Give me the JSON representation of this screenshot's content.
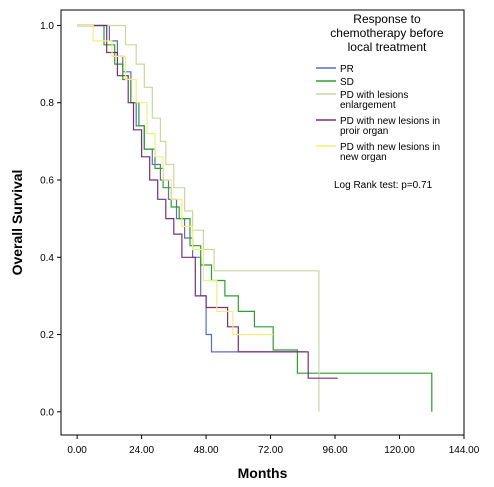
{
  "chart_data": {
    "type": "line",
    "subtype": "kaplan-meier step",
    "xlabel": "Months",
    "ylabel": "Overall Survival",
    "xlim": [
      -6,
      144
    ],
    "ylim": [
      -0.06,
      1.04
    ],
    "x_ticks": [
      0,
      24,
      48,
      72,
      96,
      120,
      144
    ],
    "x_tick_labels": [
      "0.00",
      "24.00",
      "48.00",
      "72.00",
      "96.00",
      "120.00",
      "144.00"
    ],
    "y_ticks": [
      0,
      0.2,
      0.4,
      0.6,
      0.8,
      1.0
    ],
    "y_tick_labels": [
      "0.0",
      "0.2",
      "0.4",
      "0.6",
      "0.8",
      "1.0"
    ],
    "grid": false,
    "legend_title": "Response to chemotherapy before local treatment",
    "legend_title_lines": [
      "Response to",
      "chemotherapy before",
      "local treatment"
    ],
    "legend_position": "top-right",
    "annotation": "Log Rank test: p=0.71",
    "series": [
      {
        "name": "PR",
        "label_lines": [
          "PR"
        ],
        "color": "#5a6ec8",
        "points": [
          [
            0,
            1.0
          ],
          [
            12,
            1.0
          ],
          [
            12,
            0.96
          ],
          [
            15,
            0.96
          ],
          [
            15,
            0.92
          ],
          [
            17,
            0.92
          ],
          [
            17,
            0.88
          ],
          [
            20,
            0.88
          ],
          [
            20,
            0.8
          ],
          [
            22,
            0.8
          ],
          [
            22,
            0.74
          ],
          [
            25,
            0.74
          ],
          [
            25,
            0.68
          ],
          [
            28,
            0.68
          ],
          [
            28,
            0.64
          ],
          [
            31,
            0.64
          ],
          [
            31,
            0.6
          ],
          [
            34,
            0.6
          ],
          [
            34,
            0.55
          ],
          [
            37,
            0.55
          ],
          [
            37,
            0.5
          ],
          [
            40,
            0.5
          ],
          [
            40,
            0.45
          ],
          [
            43,
            0.45
          ],
          [
            43,
            0.4
          ],
          [
            46,
            0.4
          ],
          [
            46,
            0.3
          ],
          [
            48,
            0.3
          ],
          [
            48,
            0.2
          ],
          [
            50,
            0.2
          ],
          [
            50,
            0.155
          ],
          [
            85,
            0.155
          ]
        ]
      },
      {
        "name": "SD",
        "label_lines": [
          "SD"
        ],
        "color": "#2ca02c",
        "points": [
          [
            0,
            1.0
          ],
          [
            10,
            1.0
          ],
          [
            10,
            0.95
          ],
          [
            14,
            0.95
          ],
          [
            14,
            0.9
          ],
          [
            17,
            0.9
          ],
          [
            17,
            0.86
          ],
          [
            20,
            0.86
          ],
          [
            20,
            0.8
          ],
          [
            23,
            0.8
          ],
          [
            23,
            0.74
          ],
          [
            25,
            0.74
          ],
          [
            25,
            0.68
          ],
          [
            29,
            0.68
          ],
          [
            29,
            0.63
          ],
          [
            32,
            0.63
          ],
          [
            32,
            0.58
          ],
          [
            35,
            0.58
          ],
          [
            35,
            0.53
          ],
          [
            38,
            0.53
          ],
          [
            38,
            0.5
          ],
          [
            42,
            0.5
          ],
          [
            42,
            0.43
          ],
          [
            46,
            0.43
          ],
          [
            46,
            0.38
          ],
          [
            50,
            0.38
          ],
          [
            50,
            0.34
          ],
          [
            55,
            0.34
          ],
          [
            55,
            0.3
          ],
          [
            60,
            0.3
          ],
          [
            60,
            0.26
          ],
          [
            66,
            0.26
          ],
          [
            66,
            0.22
          ],
          [
            73,
            0.22
          ],
          [
            73,
            0.16
          ],
          [
            82,
            0.16
          ],
          [
            82,
            0.1
          ],
          [
            132,
            0.1
          ],
          [
            132,
            0.0
          ]
        ]
      },
      {
        "name": "PD with lesions enlargement",
        "label_lines": [
          "PD with lesions",
          "enlargement"
        ],
        "color": "#c8d9a0",
        "points": [
          [
            0,
            1.0
          ],
          [
            18,
            1.0
          ],
          [
            18,
            0.95
          ],
          [
            22,
            0.95
          ],
          [
            22,
            0.9
          ],
          [
            25,
            0.9
          ],
          [
            25,
            0.84
          ],
          [
            28,
            0.84
          ],
          [
            28,
            0.76
          ],
          [
            31,
            0.76
          ],
          [
            31,
            0.7
          ],
          [
            33,
            0.7
          ],
          [
            33,
            0.64
          ],
          [
            36,
            0.64
          ],
          [
            36,
            0.58
          ],
          [
            40,
            0.58
          ],
          [
            40,
            0.52
          ],
          [
            43,
            0.52
          ],
          [
            43,
            0.47
          ],
          [
            47,
            0.47
          ],
          [
            47,
            0.42
          ],
          [
            51,
            0.42
          ],
          [
            51,
            0.365
          ],
          [
            90,
            0.365
          ],
          [
            90,
            0.0
          ]
        ]
      },
      {
        "name": "PD with new lesions in proir organ",
        "label_lines": [
          "PD with new lesions in",
          "proir organ"
        ],
        "color": "#7a2e7a",
        "points": [
          [
            0,
            1.0
          ],
          [
            11,
            1.0
          ],
          [
            11,
            0.93
          ],
          [
            15,
            0.93
          ],
          [
            15,
            0.87
          ],
          [
            19,
            0.87
          ],
          [
            19,
            0.8
          ],
          [
            21,
            0.8
          ],
          [
            21,
            0.73
          ],
          [
            24,
            0.73
          ],
          [
            24,
            0.66
          ],
          [
            27,
            0.66
          ],
          [
            27,
            0.6
          ],
          [
            30,
            0.6
          ],
          [
            30,
            0.55
          ],
          [
            33,
            0.55
          ],
          [
            33,
            0.5
          ],
          [
            36,
            0.5
          ],
          [
            36,
            0.46
          ],
          [
            39,
            0.46
          ],
          [
            39,
            0.4
          ],
          [
            44,
            0.4
          ],
          [
            44,
            0.3
          ],
          [
            48,
            0.3
          ],
          [
            48,
            0.27
          ],
          [
            56,
            0.27
          ],
          [
            56,
            0.22
          ],
          [
            60,
            0.22
          ],
          [
            60,
            0.155
          ],
          [
            86,
            0.155
          ],
          [
            86,
            0.087
          ],
          [
            97,
            0.087
          ]
        ]
      },
      {
        "name": "PD with new lesions in new organ",
        "label_lines": [
          "PD with new lesions in",
          "new organ"
        ],
        "color": "#f2ef78",
        "points": [
          [
            0,
            1.0
          ],
          [
            6,
            1.0
          ],
          [
            6,
            0.96
          ],
          [
            13,
            0.96
          ],
          [
            13,
            0.92
          ],
          [
            18,
            0.92
          ],
          [
            18,
            0.86
          ],
          [
            22,
            0.86
          ],
          [
            22,
            0.8
          ],
          [
            26,
            0.8
          ],
          [
            26,
            0.72
          ],
          [
            29,
            0.72
          ],
          [
            29,
            0.66
          ],
          [
            32,
            0.66
          ],
          [
            32,
            0.6
          ],
          [
            35,
            0.6
          ],
          [
            35,
            0.55
          ],
          [
            39,
            0.55
          ],
          [
            39,
            0.48
          ],
          [
            43,
            0.48
          ],
          [
            43,
            0.42
          ],
          [
            47,
            0.42
          ],
          [
            47,
            0.34
          ],
          [
            52,
            0.34
          ],
          [
            52,
            0.26
          ],
          [
            58,
            0.26
          ],
          [
            58,
            0.2
          ],
          [
            66,
            0.2
          ],
          [
            66,
            0.2
          ],
          [
            73,
            0.2
          ]
        ]
      }
    ]
  }
}
